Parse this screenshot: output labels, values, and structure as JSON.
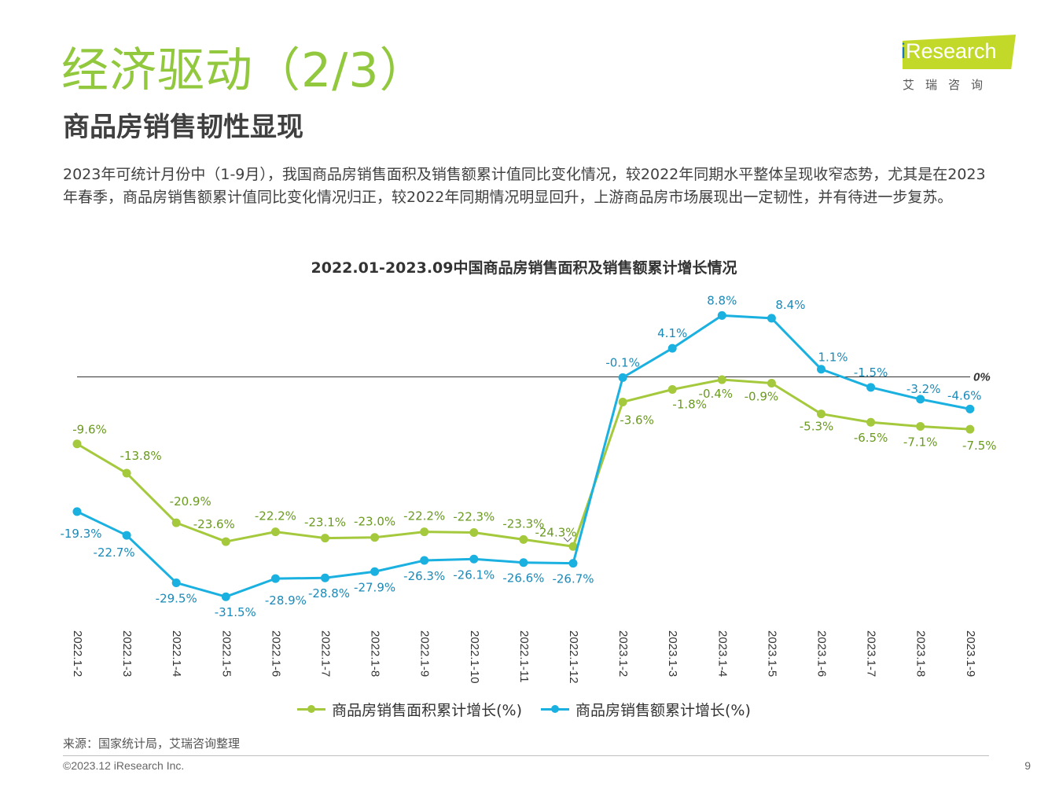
{
  "header": {
    "title": "经济驱动（2/3）",
    "subtitle": "商品房销售韧性显现"
  },
  "logo": {
    "prefix": "i",
    "brand": "Research",
    "cn": "艾瑞咨询"
  },
  "description": "2023年可统计月份中（1-9月），我国商品房销售面积及销售额累计值同比变化情况，较2022年同期水平整体呈现收窄态势，尤其是在2023年春季，商品房销售额累计值同比变化情况归正，较2022年同期情况明显回升，上游商品房市场展现出一定韧性，并有待进一步复苏。",
  "chart_data": {
    "type": "line",
    "title": "2022.01-2023.09中国商品房销售面积及销售额累计增长情况",
    "categories": [
      "2022.1-2",
      "2022.1-3",
      "2022.1-4",
      "2022.1-5",
      "2022.1-6",
      "2022.1-7",
      "2022.1-8",
      "2022.1-9",
      "2022.1-10",
      "2022.1-11",
      "2022.1-12",
      "2023.1-2",
      "2023.1-3",
      "2023.1-4",
      "2023.1-5",
      "2023.1-6",
      "2023.1-7",
      "2023.1-8",
      "2023.1-9"
    ],
    "series": [
      {
        "name": "商品房销售面积累计增长(%)",
        "color": "#a5c93c",
        "values": [
          -9.6,
          -13.8,
          -20.9,
          -23.6,
          -22.2,
          -23.1,
          -23.0,
          -22.2,
          -22.3,
          -23.3,
          -24.3,
          -3.6,
          -1.8,
          -0.4,
          -0.9,
          -5.3,
          -6.5,
          -7.1,
          -7.5
        ],
        "labels": [
          "-9.6%",
          "-13.8%",
          "-20.9%",
          "-23.6%",
          "-22.2%",
          "-23.1%",
          "-23.0%",
          "-22.2%",
          "-22.3%",
          "-23.3%",
          "-24.3%",
          "-3.6%",
          "-1.8%",
          "-0.4%",
          "-0.9%",
          "-5.3%",
          "-6.5%",
          "-7.1%",
          "-7.5%"
        ]
      },
      {
        "name": "商品房销售额累计增长(%)",
        "color": "#1ab0e0",
        "values": [
          -19.3,
          -22.7,
          -29.5,
          -31.5,
          -28.9,
          -28.8,
          -27.9,
          -26.3,
          -26.1,
          -26.6,
          -26.7,
          -0.1,
          4.1,
          8.8,
          8.4,
          1.1,
          -1.5,
          -3.2,
          -4.6
        ],
        "labels": [
          "-19.3%",
          "-22.7%",
          "-29.5%",
          "-31.5%",
          "-28.9%",
          "-28.8%",
          "-27.9%",
          "-26.3%",
          "-26.1%",
          "-26.6%",
          "-26.7%",
          "-0.1%",
          "4.1%",
          "8.8%",
          "8.4%",
          "1.1%",
          "-1.5%",
          "-3.2%",
          "-4.6%"
        ]
      }
    ],
    "zero_line_label": "0%",
    "xlabel": "",
    "ylabel": "",
    "grid": false,
    "legend_position": "bottom"
  },
  "source": "来源：国家统计局，艾瑞咨询整理",
  "copyright": "©2023.12 iResearch Inc.",
  "page_number": "9"
}
